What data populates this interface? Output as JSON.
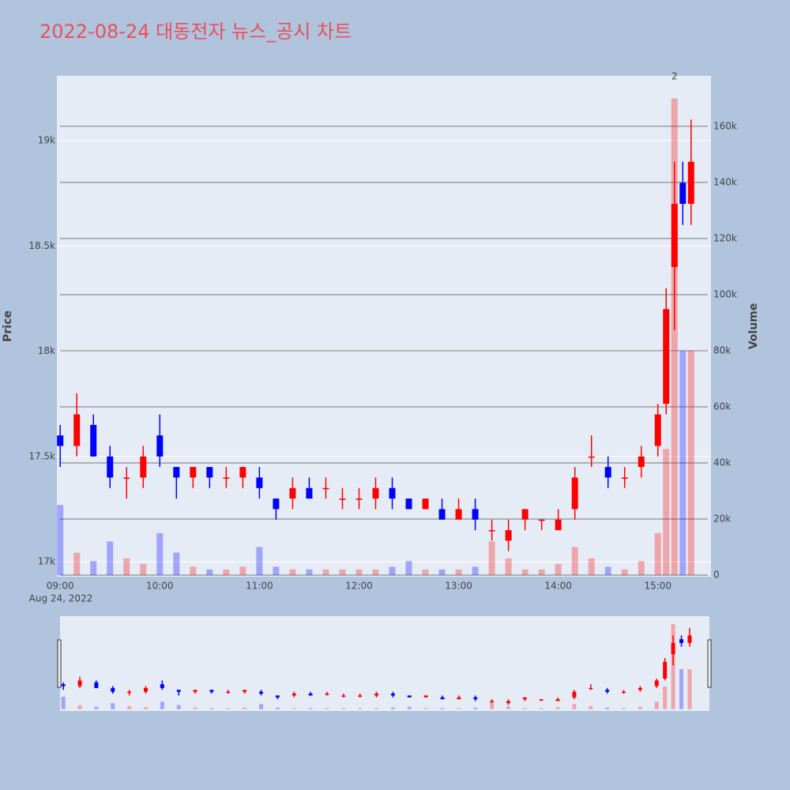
{
  "chart_data": {
    "type": "candlestick",
    "title": "2022-08-24 대동전자 뉴스_공시 차트",
    "y_title": "Price",
    "y2_title": "Volume",
    "x_date_label": "Aug 24, 2022",
    "x": [
      "09:00",
      "09:10",
      "09:20",
      "09:30",
      "09:40",
      "09:50",
      "10:00",
      "10:10",
      "10:20",
      "10:30",
      "10:40",
      "10:50",
      "11:00",
      "11:10",
      "11:20",
      "11:30",
      "11:40",
      "11:50",
      "12:00",
      "12:10",
      "12:20",
      "12:30",
      "12:40",
      "12:50",
      "13:00",
      "13:10",
      "13:20",
      "13:30",
      "13:40",
      "13:50",
      "14:00",
      "14:10",
      "14:20",
      "14:30",
      "14:40",
      "14:50",
      "15:00",
      "15:05",
      "15:10",
      "15:15",
      "15:20"
    ],
    "open": [
      17600,
      17550,
      17650,
      17500,
      17400,
      17400,
      17600,
      17450,
      17400,
      17450,
      17400,
      17400,
      17400,
      17300,
      17300,
      17350,
      17350,
      17300,
      17300,
      17300,
      17350,
      17300,
      17250,
      17250,
      17200,
      17250,
      17150,
      17100,
      17200,
      17200,
      17150,
      17250,
      17500,
      17450,
      17400,
      17450,
      17550,
      17750,
      18400,
      18800,
      18700
    ],
    "high": [
      17650,
      17800,
      17700,
      17550,
      17450,
      17550,
      17700,
      17450,
      17450,
      17450,
      17450,
      17450,
      17450,
      17300,
      17400,
      17400,
      17400,
      17350,
      17350,
      17400,
      17400,
      17300,
      17300,
      17300,
      17300,
      17300,
      17200,
      17200,
      17250,
      17200,
      17250,
      17450,
      17600,
      17500,
      17450,
      17550,
      17750,
      18300,
      18900,
      18900,
      19100
    ],
    "low": [
      17450,
      17500,
      17500,
      17350,
      17300,
      17350,
      17450,
      17300,
      17350,
      17350,
      17350,
      17350,
      17300,
      17200,
      17250,
      17300,
      17300,
      17250,
      17250,
      17250,
      17250,
      17250,
      17250,
      17200,
      17200,
      17150,
      17100,
      17050,
      17150,
      17150,
      17150,
      17200,
      17450,
      17350,
      17350,
      17400,
      17500,
      17700,
      18100,
      18600,
      18600
    ],
    "close": [
      17550,
      17700,
      17500,
      17400,
      17400,
      17500,
      17500,
      17400,
      17450,
      17400,
      17400,
      17450,
      17350,
      17250,
      17350,
      17300,
      17350,
      17300,
      17300,
      17350,
      17300,
      17250,
      17300,
      17200,
      17250,
      17200,
      17150,
      17150,
      17250,
      17200,
      17200,
      17400,
      17500,
      17400,
      17400,
      17500,
      17700,
      18200,
      18700,
      18700,
      18900
    ],
    "volume": [
      25000,
      8000,
      5000,
      12000,
      6000,
      4000,
      15000,
      8000,
      3000,
      2000,
      2000,
      3000,
      10000,
      3000,
      2000,
      2000,
      2000,
      2000,
      2000,
      2000,
      3000,
      5000,
      2000,
      2000,
      2000,
      3000,
      12000,
      6000,
      2000,
      2000,
      4000,
      10000,
      6000,
      3000,
      2000,
      5000,
      15000,
      45000,
      170000,
      80000,
      80000
    ],
    "increasing_color": "#ff0000",
    "decreasing_color": "#0000ff",
    "xlim": [
      "08:58",
      "15:32"
    ],
    "xticks": [
      "09:00",
      "10:00",
      "11:00",
      "12:00",
      "13:00",
      "14:00",
      "15:00"
    ],
    "ylim": [
      16929,
      19308
    ],
    "yticks": [
      {
        "value": 17000,
        "label": "17k"
      },
      {
        "value": 17500,
        "label": "17.5k"
      },
      {
        "value": 18000,
        "label": "18k"
      },
      {
        "value": 18500,
        "label": "18.5k"
      },
      {
        "value": 19000,
        "label": "19k"
      }
    ],
    "y2lim": [
      -563,
      178000
    ],
    "y2ticks": [
      0,
      {
        "value": 20000,
        "label": "20k"
      },
      {
        "value": 40000,
        "label": "40k"
      },
      {
        "value": 60000,
        "label": "60k"
      },
      {
        "value": 80000,
        "label": "80k"
      },
      {
        "value": 100000,
        "label": "100k"
      },
      {
        "value": 120000,
        "label": "120k"
      },
      {
        "value": 140000,
        "label": "140k"
      },
      {
        "value": 160000,
        "label": "160k"
      }
    ],
    "annotation": {
      "text": "2",
      "x": "15:10"
    },
    "range_slider": true
  }
}
